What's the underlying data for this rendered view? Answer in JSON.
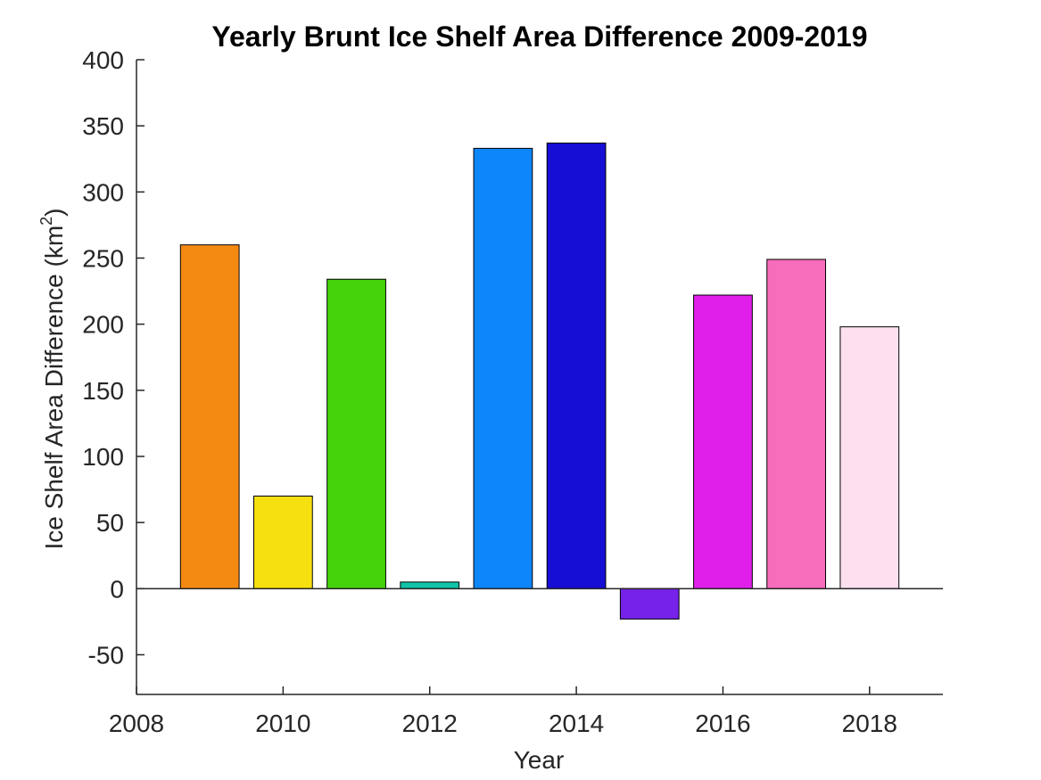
{
  "chart_data": {
    "type": "bar",
    "title": "Yearly Brunt Ice Shelf Area Difference 2009-2019",
    "xlabel": "Year",
    "ylabel_prefix": "Ice Shelf Area Difference (km",
    "ylabel_sup": "2",
    "ylabel_suffix": ")",
    "categories": [
      2009,
      2010,
      2011,
      2012,
      2013,
      2014,
      2015,
      2016,
      2017,
      2018
    ],
    "values": [
      260,
      70,
      234,
      5,
      333,
      337,
      -23,
      222,
      249,
      198
    ],
    "colors": [
      "#f58a12",
      "#f7e010",
      "#45d40c",
      "#12c4a8",
      "#0d85fb",
      "#160ed4",
      "#7622e8",
      "#e020ea",
      "#f76cbb",
      "#fde0f0"
    ],
    "xlim": [
      2008,
      2019
    ],
    "ylim": [
      -80,
      400
    ],
    "xticks": [
      2008,
      2010,
      2012,
      2014,
      2016,
      2018
    ],
    "yticks": [
      400,
      350,
      300,
      250,
      200,
      150,
      100,
      50,
      0,
      -50
    ],
    "grid": false
  }
}
